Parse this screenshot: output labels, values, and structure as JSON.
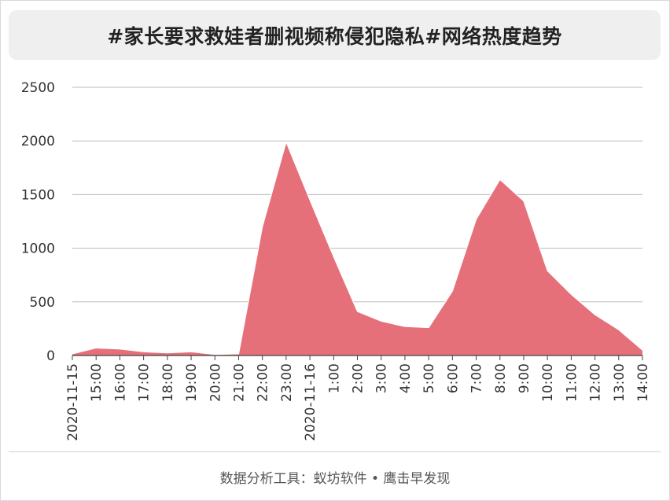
{
  "title": "#家长要求救娃者删视频称侵犯隐私#网络热度趋势",
  "footer": "数据分析工具：蚁坊软件 • 鹰击早发现",
  "colors": {
    "area_fill": "#e5707a",
    "area_stroke": "#ffffff",
    "grid": "#bbbbbb",
    "baseline": "#444444"
  },
  "chart_data": {
    "type": "area",
    "title": "#家长要求救娃者删视频称侵犯隐私#网络热度趋势",
    "xlabel": "",
    "ylabel": "",
    "ylim": [
      0,
      2500
    ],
    "yticks": [
      0,
      500,
      1000,
      1500,
      2000,
      2500
    ],
    "grid": true,
    "legend": "none",
    "categories": [
      "2020-11-15",
      "15:00",
      "16:00",
      "17:00",
      "18:00",
      "19:00",
      "20:00",
      "21:00",
      "22:00",
      "23:00",
      "2020-11-16",
      "1:00",
      "2:00",
      "3:00",
      "4:00",
      "5:00",
      "6:00",
      "7:00",
      "8:00",
      "9:00",
      "10:00",
      "11:00",
      "12:00",
      "13:00",
      "14:00"
    ],
    "series": [
      {
        "values": [
          15,
          70,
          60,
          35,
          25,
          35,
          10,
          15,
          1200,
          1990,
          1450,
          920,
          410,
          320,
          270,
          260,
          600,
          1270,
          1640,
          1440,
          790,
          570,
          380,
          240,
          50
        ]
      }
    ]
  }
}
